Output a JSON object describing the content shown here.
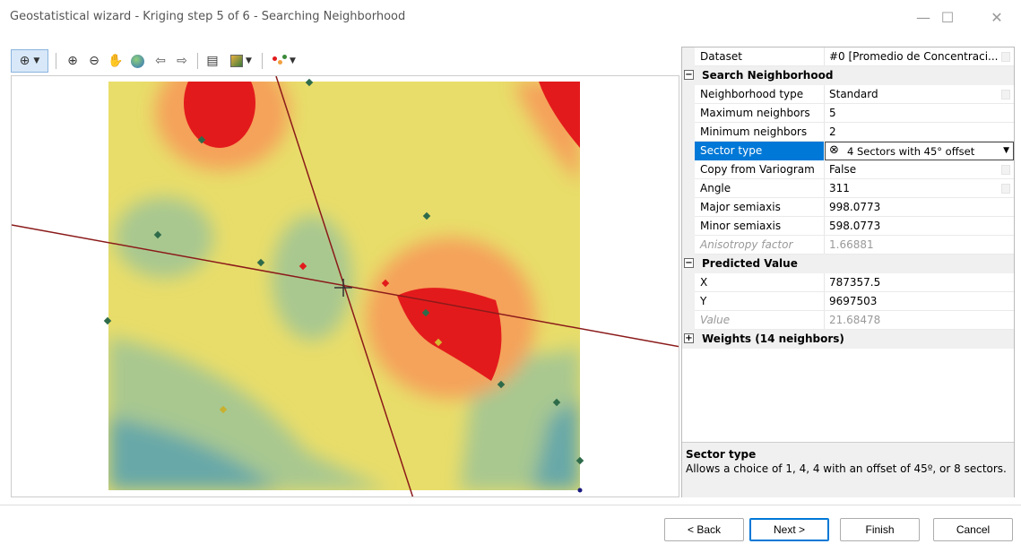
{
  "window": {
    "title": "Geostatistical wizard - Kriging step 5 of 6 - Searching Neighborhood",
    "minimize": "—",
    "maximize": "☐",
    "close": "✕"
  },
  "toolbar": {
    "icons": [
      "select-icon",
      "zoom-in-icon",
      "zoom-out-icon",
      "pan-icon",
      "globe-icon",
      "back-arrow-icon",
      "forward-arrow-icon",
      "table-icon",
      "layer-icon",
      "symbology-icon"
    ]
  },
  "properties": {
    "dataset": {
      "label": "Dataset",
      "value": "#0 [Promedio de Concentraci..."
    },
    "search_section": "Search Neighborhood",
    "neighborhood_type": {
      "label": "Neighborhood type",
      "value": "Standard"
    },
    "max_neighbors": {
      "label": "Maximum neighbors",
      "value": "5"
    },
    "min_neighbors": {
      "label": "Minimum neighbors",
      "value": "2"
    },
    "sector_type": {
      "label": "Sector type",
      "value": "4 Sectors with 45° offset"
    },
    "copy_variogram": {
      "label": "Copy from Variogram",
      "value": "False"
    },
    "angle": {
      "label": "Angle",
      "value": "311"
    },
    "major": {
      "label": "Major semiaxis",
      "value": "998.0773"
    },
    "minor": {
      "label": "Minor semiaxis",
      "value": "598.0773"
    },
    "anisotropy": {
      "label": "Anisotropy factor",
      "value": "1.66881"
    },
    "predicted_section": "Predicted Value",
    "x": {
      "label": "X",
      "value": "787357.5"
    },
    "y": {
      "label": "Y",
      "value": "9697503"
    },
    "value": {
      "label": "Value",
      "value": "21.68478"
    },
    "weights_section": "Weights (14 neighbors)"
  },
  "description": {
    "title": "Sector type",
    "text": "Allows a choice of 1, 4, 4 with an offset of 45º, or 8 sectors."
  },
  "buttons": {
    "back": "< Back",
    "next": "Next >",
    "finish": "Finish",
    "cancel": "Cancel"
  },
  "colors": {
    "red": "#e31a1c",
    "orange": "#f5a25a",
    "yellow": "#e8dd6a",
    "green": "#a8c890",
    "teal": "#68a8a8",
    "axis": "#8b1a1a",
    "selected": "#0078d7"
  }
}
